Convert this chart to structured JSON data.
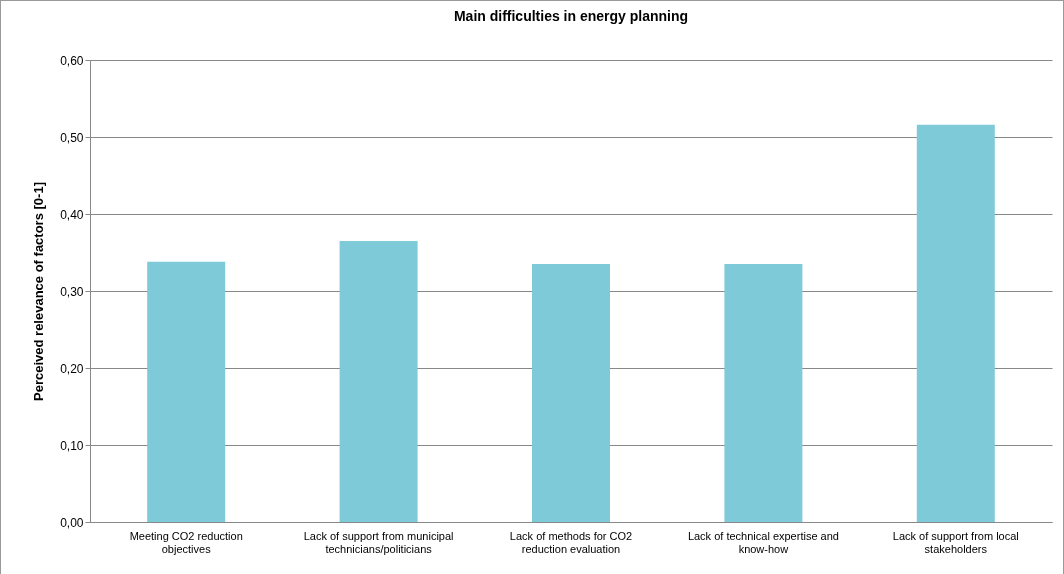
{
  "chart_data": {
    "type": "bar",
    "title": "Main difficulties in energy planning",
    "ylabel": "Perceived relevance of factors [0-1]",
    "categories": [
      "Meeting CO2 reduction\nobjectives",
      "Lack of support from municipal\ntechnicians/politicians",
      "Lack of methods for CO2\nreduction evaluation",
      "Lack of technical expertise and\nknow-how",
      "Lack of support from local\nstakeholders"
    ],
    "values": [
      0.338,
      0.365,
      0.335,
      0.335,
      0.516
    ],
    "color": "#7fcad8",
    "ylim": [
      0,
      0.6
    ],
    "yticks": [
      {
        "value": 0,
        "label": "0,00"
      },
      {
        "value": 0.1,
        "label": "0,10"
      },
      {
        "value": 0.2,
        "label": "0,20"
      },
      {
        "value": 0.3,
        "label": "0,30"
      },
      {
        "value": 0.4,
        "label": "0,40"
      },
      {
        "value": 0.5,
        "label": "0,50"
      },
      {
        "value": 0.6,
        "label": "0,60"
      }
    ],
    "grid": true
  }
}
